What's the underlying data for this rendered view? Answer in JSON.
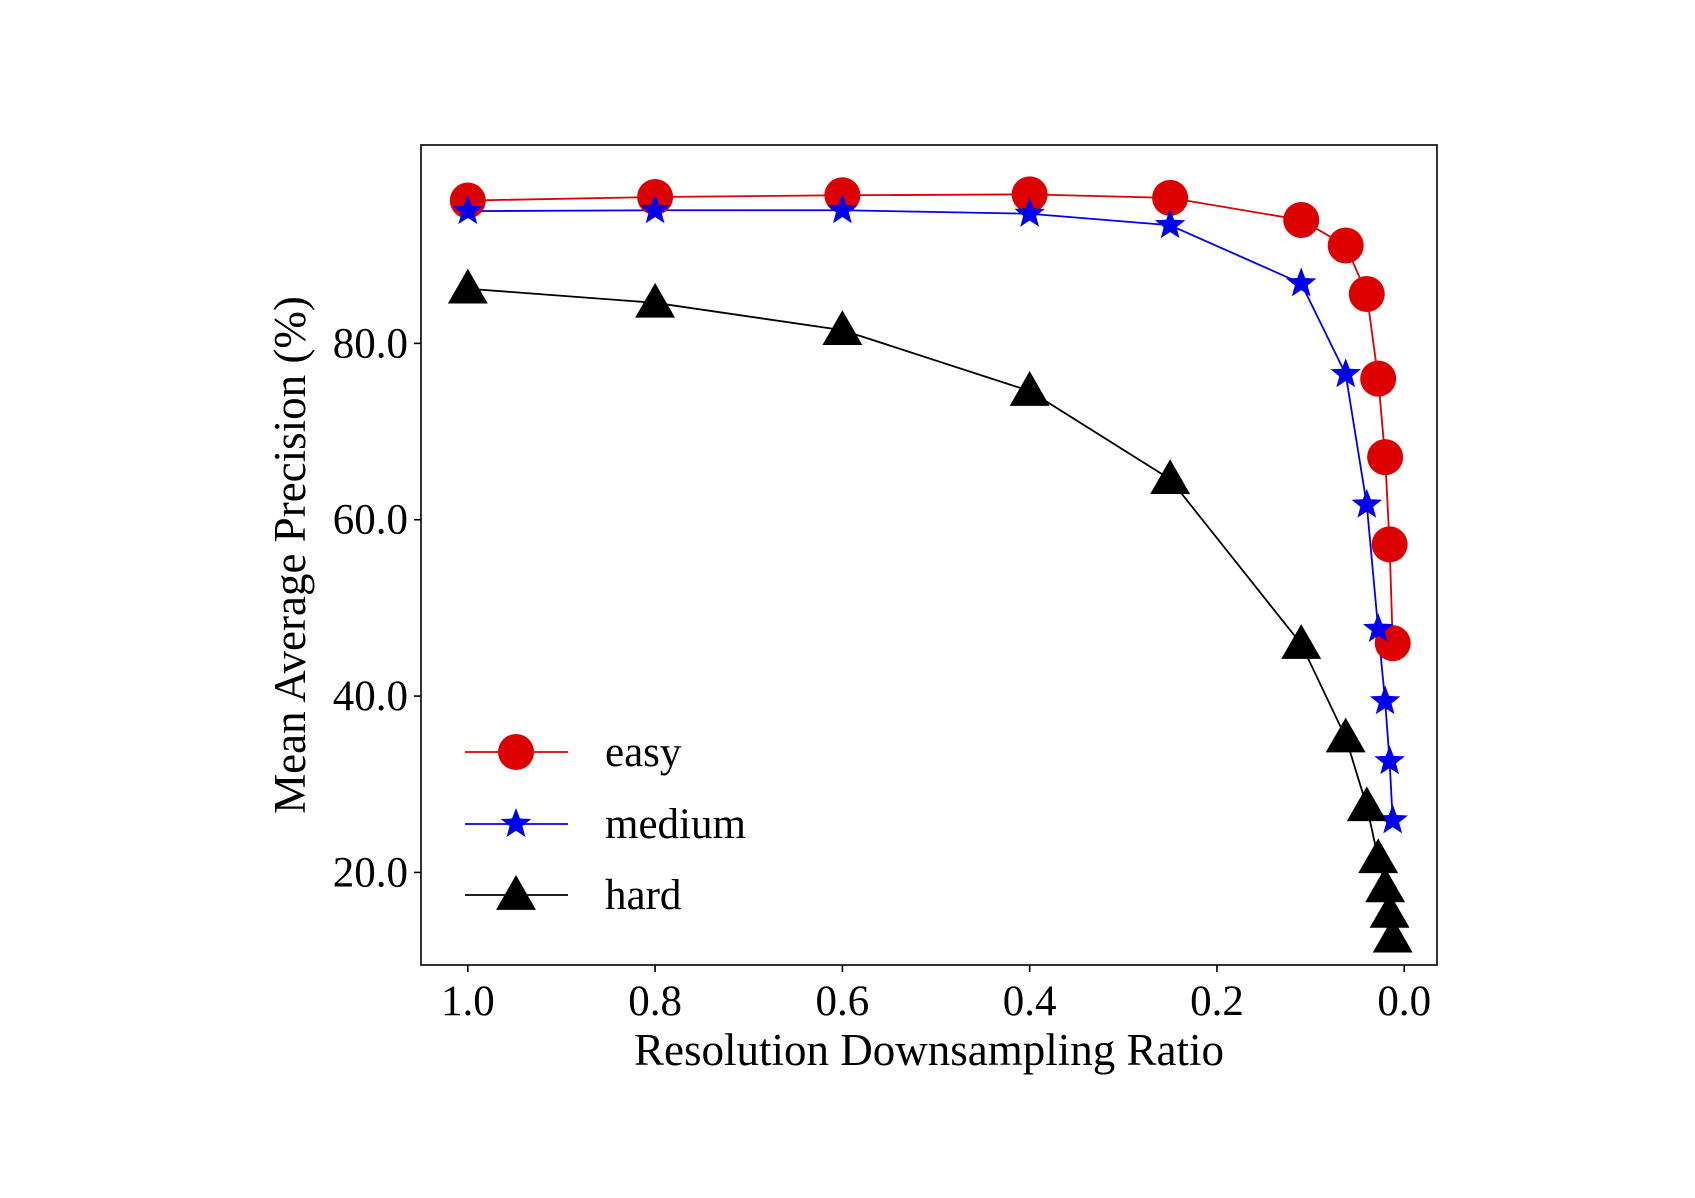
{
  "chart_data": {
    "type": "line",
    "title": "",
    "xlabel": "Resolution Downsampling Ratio",
    "ylabel": "Mean Average Precision (%)",
    "xlim": [
      1.05,
      -0.035
    ],
    "ylim": [
      9.5,
      102.5
    ],
    "xticks": [
      1.0,
      0.8,
      0.6,
      0.4,
      0.2,
      0.0
    ],
    "xtick_labels": [
      "1.0",
      "0.8",
      "0.6",
      "0.4",
      "0.2",
      "0.0"
    ],
    "yticks": [
      20,
      40,
      60,
      80
    ],
    "ytick_labels": [
      "20.0",
      "40.0",
      "60.0",
      "80.0"
    ],
    "grid": false,
    "legend_position": "lower-left",
    "x": [
      1.0,
      0.8,
      0.6,
      0.4,
      0.25,
      0.11,
      0.0625,
      0.04,
      0.0278,
      0.0204,
      0.0156,
      0.0123
    ],
    "series": [
      {
        "name": "easy",
        "color": "#dd0000",
        "marker": "circle",
        "values": [
          96.2,
          96.6,
          96.8,
          96.9,
          96.5,
          94.0,
          91.1,
          85.6,
          76.0,
          67.1,
          57.2,
          46.0
        ]
      },
      {
        "name": "medium",
        "color": "#0000ee",
        "marker": "star",
        "values": [
          95.0,
          95.1,
          95.1,
          94.7,
          93.4,
          86.8,
          76.5,
          61.7,
          47.6,
          39.4,
          32.6,
          25.9
        ]
      },
      {
        "name": "hard",
        "color": "#000000",
        "marker": "triangle",
        "values": [
          86.2,
          84.6,
          81.5,
          74.6,
          64.6,
          45.9,
          35.3,
          27.5,
          21.6,
          18.3,
          15.4,
          12.6
        ]
      }
    ]
  }
}
